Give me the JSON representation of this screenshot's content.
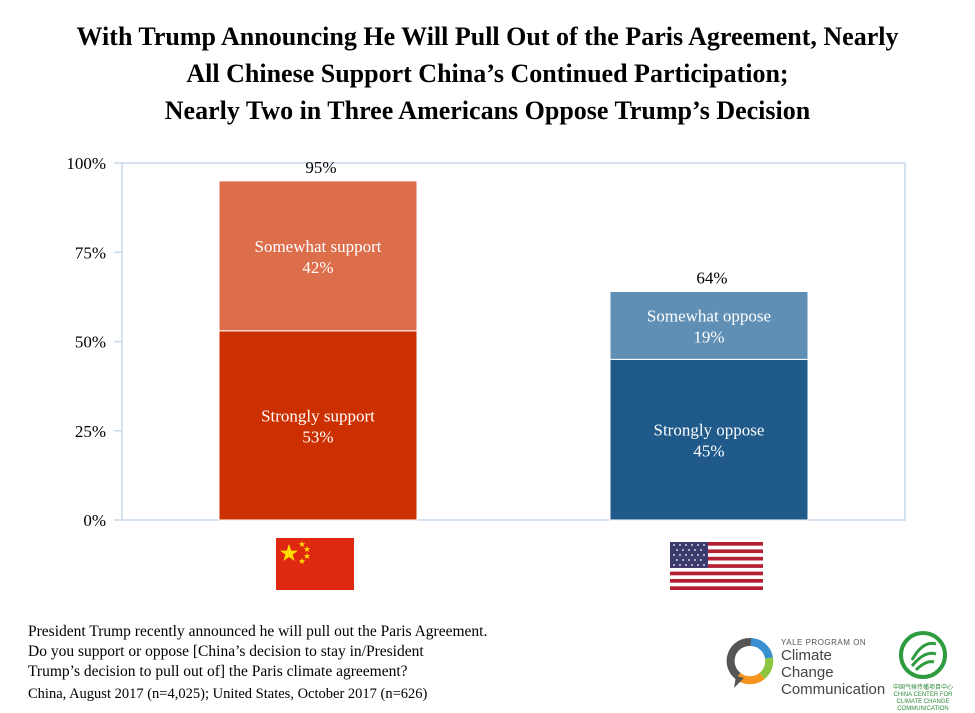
{
  "title": {
    "line1": "With Trump Announcing He Will Pull Out of the Paris Agreement, Nearly",
    "line2": "All Chinese Support China’s Continued Participation;",
    "line3": "Nearly Two in Three Americans Oppose Trump’s Decision"
  },
  "chart_data": {
    "type": "bar",
    "stacked": true,
    "categories": [
      "China",
      "United States"
    ],
    "ytick_labels": [
      "0%",
      "25%",
      "50%",
      "75%",
      "100%"
    ],
    "ylim": [
      0,
      100
    ],
    "grid": false,
    "segments": [
      {
        "category": "China",
        "label": "Strongly support",
        "value": 53,
        "value_label": "53%",
        "color": "#cc2f00"
      },
      {
        "category": "China",
        "label": "Somewhat support",
        "value": 42,
        "value_label": "42%",
        "color": "#dd6e4b"
      },
      {
        "category": "United States",
        "label": "Strongly oppose",
        "value": 45,
        "value_label": "45%",
        "color": "#1f5a8a"
      },
      {
        "category": "United States",
        "label": "Somewhat oppose",
        "value": 19,
        "value_label": "19%",
        "color": "#5f8fb5"
      }
    ],
    "totals": [
      {
        "category": "China",
        "value": 95,
        "label": "95%"
      },
      {
        "category": "United States",
        "value": 64,
        "label": "64%"
      }
    ]
  },
  "flags": {
    "china": "china-flag-icon",
    "usa": "us-flag-icon"
  },
  "footer": {
    "question_line1": "President Trump recently announced he will pull out the Paris Agreement.",
    "question_line2": "Do you support or oppose [China’s decision to stay in/President",
    "question_line3": "Trump’s decision to pull out of] the Paris climate agreement?",
    "source": "China, August 2017 (n=4,025); United States, October 2017 (n=626)"
  },
  "logos": {
    "yale_small": "YALE PROGRAM ON",
    "yale_line1": "Climate Change",
    "yale_line2": "Communication",
    "cn_caption1": "中国气候传播项目中心",
    "cn_caption2": "CHINA CENTER FOR",
    "cn_caption3": "CLIMATE CHANGE COMMUNICATION"
  },
  "colors": {
    "axis": "#c9d9ea",
    "china_strong": "#cc2f00",
    "china_some": "#dd6e4b",
    "us_strong": "#1f5a8a",
    "us_some": "#5f8fb5"
  }
}
